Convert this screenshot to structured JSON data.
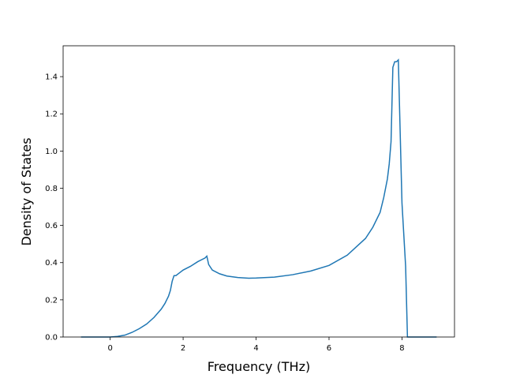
{
  "chart_data": {
    "type": "line",
    "xlabel": "Frequency (THz)",
    "ylabel": "Density of States",
    "x": [
      -0.8,
      0,
      0.2,
      0.4,
      0.6,
      0.8,
      1.0,
      1.2,
      1.4,
      1.5,
      1.6,
      1.65,
      1.7,
      1.75,
      1.8,
      1.9,
      2.0,
      2.2,
      2.4,
      2.6,
      2.65,
      2.7,
      2.8,
      3.0,
      3.2,
      3.5,
      3.8,
      4.0,
      4.5,
      5.0,
      5.5,
      6.0,
      6.5,
      7.0,
      7.2,
      7.4,
      7.5,
      7.6,
      7.65,
      7.7,
      7.75,
      7.8,
      7.85,
      7.9,
      8.0,
      8.1,
      8.15,
      8.5,
      8.95
    ],
    "series": [
      {
        "color": "#1f77b4",
        "values": [
          0,
          0,
          0.003,
          0.01,
          0.025,
          0.045,
          0.07,
          0.105,
          0.15,
          0.18,
          0.22,
          0.25,
          0.3,
          0.33,
          0.33,
          0.345,
          0.36,
          0.38,
          0.405,
          0.425,
          0.435,
          0.39,
          0.36,
          0.34,
          0.328,
          0.32,
          0.316,
          0.317,
          0.322,
          0.335,
          0.355,
          0.385,
          0.44,
          0.53,
          0.59,
          0.67,
          0.75,
          0.85,
          0.93,
          1.05,
          1.45,
          1.48,
          1.48,
          1.49,
          0.72,
          0.38,
          0,
          0,
          0
        ]
      }
    ],
    "xlim": [
      -1.29,
      9.44
    ],
    "ylim": [
      0,
      1.566
    ],
    "xticks": [
      0,
      2,
      4,
      6,
      8
    ],
    "yticks": [
      {
        "value": 0,
        "label": "0.0"
      },
      0.2,
      0.4,
      0.6,
      0.8,
      {
        "value": 1,
        "label": "1.0"
      },
      1.2,
      1.4
    ]
  }
}
